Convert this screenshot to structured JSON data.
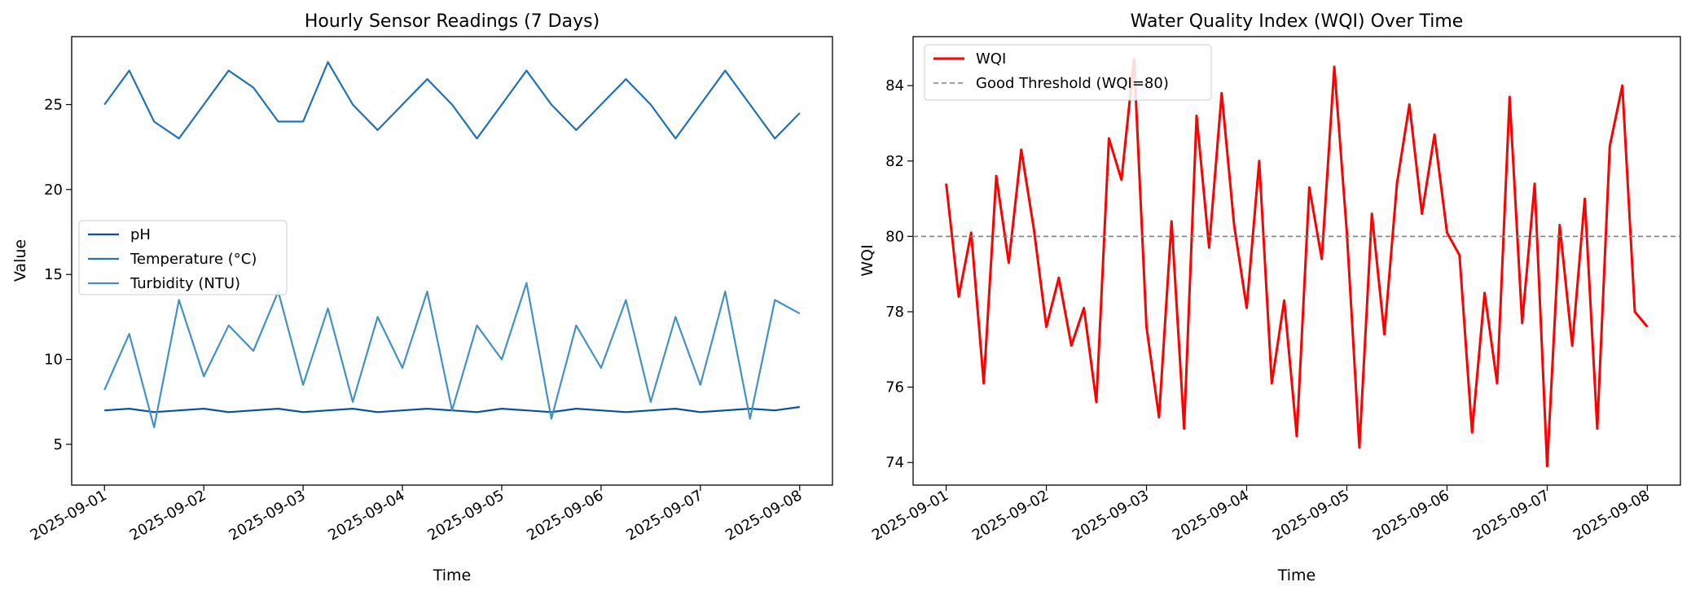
{
  "chart_data": [
    {
      "type": "line",
      "title": "Hourly Sensor Readings (7 Days)",
      "xlabel": "Time",
      "ylabel": "Value",
      "x_ticks": [
        "2025-09-01",
        "2025-09-02",
        "2025-09-03",
        "2025-09-04",
        "2025-09-05",
        "2025-09-06",
        "2025-09-07",
        "2025-09-08"
      ],
      "xlim": [
        -0.33,
        7.33
      ],
      "ylim": [
        2.6,
        29.0
      ],
      "y_ticks": [
        5,
        10,
        15,
        20,
        25
      ],
      "grid": false,
      "legend_position": "center-left",
      "series": [
        {
          "name": "pH",
          "color": "#08519c",
          "x": [
            0,
            0.25,
            0.5,
            0.75,
            1,
            1.25,
            1.5,
            1.75,
            2,
            2.25,
            2.5,
            2.75,
            3,
            3.25,
            3.5,
            3.75,
            4,
            4.25,
            4.5,
            4.75,
            5,
            5.25,
            5.5,
            5.75,
            6,
            6.25,
            6.5,
            6.75,
            7
          ],
          "values": [
            7.0,
            7.1,
            6.9,
            7.0,
            7.1,
            6.9,
            7.0,
            7.1,
            6.9,
            7.0,
            7.1,
            6.9,
            7.0,
            7.1,
            7.0,
            6.9,
            7.1,
            7.0,
            6.9,
            7.1,
            7.0,
            6.9,
            7.0,
            7.1,
            6.9,
            7.0,
            7.1,
            7.0,
            7.2
          ]
        },
        {
          "name": "Temperature (°C)",
          "color": "#2171b5",
          "x": [
            0,
            0.25,
            0.5,
            0.75,
            1,
            1.25,
            1.5,
            1.75,
            2,
            2.25,
            2.5,
            2.75,
            3,
            3.25,
            3.5,
            3.75,
            4,
            4.25,
            4.5,
            4.75,
            5,
            5.25,
            5.5,
            5.75,
            6,
            6.25,
            6.5,
            6.75,
            7
          ],
          "values": [
            25.0,
            27.0,
            24.0,
            23.0,
            25.0,
            27.0,
            26.0,
            24.0,
            24.0,
            27.5,
            25.0,
            23.5,
            25.0,
            26.5,
            25.0,
            23.0,
            25.0,
            27.0,
            25.0,
            23.5,
            25.0,
            26.5,
            25.0,
            23.0,
            25.0,
            27.0,
            25.0,
            23.0,
            24.5
          ]
        },
        {
          "name": "Turbidity (NTU)",
          "color": "#4292c6",
          "x": [
            0,
            0.25,
            0.5,
            0.75,
            1,
            1.25,
            1.5,
            1.75,
            2,
            2.25,
            2.5,
            2.75,
            3,
            3.25,
            3.5,
            3.75,
            4,
            4.25,
            4.5,
            4.75,
            5,
            5.25,
            5.5,
            5.75,
            6,
            6.25,
            6.5,
            6.75,
            7
          ],
          "values": [
            8.2,
            11.5,
            6.0,
            13.5,
            9.0,
            12.0,
            10.5,
            14.0,
            8.5,
            13.0,
            7.5,
            12.5,
            9.5,
            14.0,
            7.0,
            12.0,
            10.0,
            14.5,
            6.5,
            12.0,
            9.5,
            13.5,
            7.5,
            12.5,
            8.5,
            14.0,
            6.5,
            13.5,
            12.7
          ]
        }
      ]
    },
    {
      "type": "line",
      "title": "Water Quality Index (WQI) Over Time",
      "xlabel": "Time",
      "ylabel": "WQI",
      "x_ticks": [
        "2025-09-01",
        "2025-09-02",
        "2025-09-03",
        "2025-09-04",
        "2025-09-05",
        "2025-09-06",
        "2025-09-07",
        "2025-09-08"
      ],
      "xlim": [
        -0.33,
        7.33
      ],
      "ylim": [
        73.4,
        85.3
      ],
      "y_ticks": [
        74,
        76,
        78,
        80,
        82,
        84
      ],
      "grid": false,
      "legend_position": "top-left",
      "series": [
        {
          "name": "WQI",
          "color": "#ff0000",
          "x": [
            0,
            0.125,
            0.25,
            0.375,
            0.5,
            0.625,
            0.75,
            0.875,
            1,
            1.125,
            1.25,
            1.375,
            1.5,
            1.625,
            1.75,
            1.875,
            2,
            2.125,
            2.25,
            2.375,
            2.5,
            2.625,
            2.75,
            2.875,
            3,
            3.125,
            3.25,
            3.375,
            3.5,
            3.625,
            3.75,
            3.875,
            4,
            4.125,
            4.25,
            4.375,
            4.5,
            4.625,
            4.75,
            4.875,
            5,
            5.125,
            5.25,
            5.375,
            5.5,
            5.625,
            5.75,
            5.875,
            6,
            6.125,
            6.25,
            6.375,
            6.5,
            6.625,
            6.75,
            6.875,
            7
          ],
          "values": [
            81.4,
            78.4,
            80.1,
            76.1,
            81.6,
            79.3,
            82.3,
            80.2,
            77.6,
            78.9,
            77.1,
            78.1,
            75.6,
            82.6,
            81.5,
            84.7,
            77.6,
            75.2,
            80.4,
            74.9,
            83.2,
            79.7,
            83.8,
            80.3,
            78.1,
            82.0,
            76.1,
            78.3,
            74.7,
            81.3,
            79.4,
            84.5,
            80.1,
            74.4,
            80.6,
            77.4,
            81.4,
            83.5,
            80.6,
            82.7,
            80.1,
            79.5,
            74.8,
            78.5,
            76.1,
            83.7,
            77.7,
            81.4,
            73.9,
            80.3,
            77.1,
            81.0,
            74.9,
            82.4,
            84.0,
            78.0,
            77.6
          ]
        },
        {
          "name": "Good Threshold (WQI=80)",
          "color": "#808080",
          "style": "dashed",
          "values": [
            80
          ]
        }
      ]
    }
  ]
}
